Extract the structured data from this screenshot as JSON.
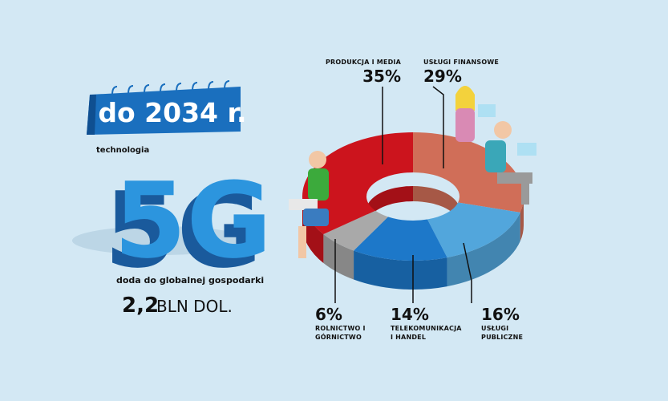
{
  "calendar": "do 2034 r.",
  "intro": "technologia",
  "big_text": "5G",
  "caption": "doda do globalnej gospodarki",
  "amount_value": "2,2",
  "amount_unit": "BLN DOL.",
  "chart_data": {
    "type": "pie",
    "categories": [
      "USŁUGI FINANSOWE",
      "USŁUGI PUBLICZNE",
      "TELEKOMUNIKACJA I HANDEL",
      "ROLNICTWO I GÓRNICTWO",
      "PRODUKCJA I MEDIA"
    ],
    "values": [
      29,
      16,
      14,
      6,
      35
    ],
    "value_labels": [
      "29%",
      "16%",
      "14%",
      "6%",
      "35%"
    ],
    "colors": [
      "#d06e58",
      "#52a6dc",
      "#1d78c9",
      "#a9a9a9",
      "#cc141d"
    ]
  }
}
